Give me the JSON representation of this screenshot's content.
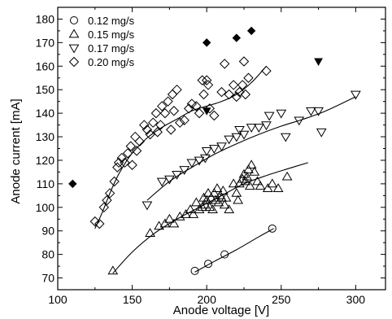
{
  "chart_data": {
    "type": "scatter",
    "xlabel": "Anode voltage [V]",
    "ylabel": "Anode current [mA]",
    "xlim": [
      100,
      320
    ],
    "ylim": [
      65,
      185
    ],
    "xticks": [
      100,
      150,
      200,
      250,
      300
    ],
    "yticks": [
      70,
      80,
      90,
      100,
      110,
      120,
      130,
      140,
      150,
      160,
      170,
      180
    ],
    "grid": false,
    "legend_position": "top-left",
    "series": [
      {
        "name": "0.12 mg/s",
        "marker": "circle",
        "points": [
          [
            192,
            73
          ],
          [
            201,
            76
          ],
          [
            212,
            80
          ],
          [
            244,
            91
          ]
        ],
        "fit": [
          [
            192,
            72.5
          ],
          [
            205,
            77
          ],
          [
            220,
            82
          ],
          [
            235,
            87.5
          ],
          [
            245,
            91
          ]
        ]
      },
      {
        "name": "0.15 mg/s",
        "marker": "triangle-up",
        "points": [
          [
            137,
            73
          ],
          [
            162,
            89
          ],
          [
            168,
            92
          ],
          [
            172,
            93
          ],
          [
            175,
            95
          ],
          [
            178,
            93
          ],
          [
            182,
            96
          ],
          [
            186,
            97
          ],
          [
            189,
            99
          ],
          [
            191,
            97
          ],
          [
            193,
            102
          ],
          [
            195,
            99
          ],
          [
            197,
            100
          ],
          [
            198,
            104
          ],
          [
            199,
            101
          ],
          [
            200,
            103
          ],
          [
            201,
            106
          ],
          [
            202,
            100
          ],
          [
            203,
            104
          ],
          [
            204,
            99
          ],
          [
            205,
            106
          ],
          [
            206,
            103
          ],
          [
            207,
            108
          ],
          [
            208,
            102
          ],
          [
            209,
            105
          ],
          [
            210,
            104
          ],
          [
            211,
            107
          ],
          [
            212,
            101
          ],
          [
            213,
            104
          ],
          [
            215,
            99
          ],
          [
            218,
            110
          ],
          [
            220,
            106
          ],
          [
            221,
            103
          ],
          [
            222,
            110
          ],
          [
            224,
            112
          ],
          [
            225,
            114
          ],
          [
            226,
            111
          ],
          [
            227,
            113
          ],
          [
            228,
            116
          ],
          [
            229,
            109
          ],
          [
            230,
            118
          ],
          [
            232,
            115
          ],
          [
            234,
            111
          ],
          [
            236,
            109
          ],
          [
            241,
            108
          ],
          [
            244,
            110
          ],
          [
            248,
            108
          ],
          [
            254,
            113
          ]
        ],
        "fit": [
          [
            137,
            72
          ],
          [
            150,
            81
          ],
          [
            165,
            89
          ],
          [
            180,
            95
          ],
          [
            195,
            100
          ],
          [
            210,
            105
          ],
          [
            225,
            110
          ],
          [
            240,
            113.5
          ],
          [
            255,
            116.5
          ],
          [
            268,
            119
          ]
        ]
      },
      {
        "name": "0.17 mg/s",
        "marker": "triangle-down",
        "points": [
          [
            160,
            101
          ],
          [
            170,
            111
          ],
          [
            175,
            112
          ],
          [
            180,
            114
          ],
          [
            185,
            116
          ],
          [
            190,
            119
          ],
          [
            195,
            120
          ],
          [
            199,
            121
          ],
          [
            200,
            124
          ],
          [
            205,
            125
          ],
          [
            210,
            126
          ],
          [
            215,
            129
          ],
          [
            220,
            130
          ],
          [
            222,
            133
          ],
          [
            225,
            131
          ],
          [
            230,
            134
          ],
          [
            235,
            134
          ],
          [
            240,
            135
          ],
          [
            242,
            139
          ],
          [
            250,
            140
          ],
          [
            253,
            130
          ],
          [
            262,
            137
          ],
          [
            270,
            141
          ],
          [
            275,
            141
          ],
          [
            277,
            132
          ],
          [
            300,
            148
          ]
        ],
        "fit": [
          [
            160,
            103
          ],
          [
            175,
            111
          ],
          [
            190,
            117
          ],
          [
            205,
            122.5
          ],
          [
            220,
            127
          ],
          [
            235,
            131
          ],
          [
            250,
            134.5
          ],
          [
            265,
            137.5
          ],
          [
            280,
            141
          ],
          [
            300,
            147
          ]
        ]
      },
      {
        "name": "0.20 mg/s",
        "marker": "diamond",
        "points": [
          [
            125,
            94
          ],
          [
            128,
            93
          ],
          [
            131,
            100
          ],
          [
            133,
            103
          ],
          [
            135,
            106
          ],
          [
            138,
            111
          ],
          [
            140,
            117
          ],
          [
            141,
            119
          ],
          [
            143,
            121
          ],
          [
            145,
            119
          ],
          [
            147,
            123
          ],
          [
            149,
            126
          ],
          [
            150,
            118
          ],
          [
            152,
            130
          ],
          [
            153,
            124
          ],
          [
            155,
            128
          ],
          [
            158,
            135
          ],
          [
            160,
            133
          ],
          [
            162,
            131
          ],
          [
            164,
            136
          ],
          [
            166,
            140
          ],
          [
            167,
            132
          ],
          [
            169,
            135
          ],
          [
            170,
            143
          ],
          [
            172,
            140
          ],
          [
            174,
            145
          ],
          [
            176,
            133
          ],
          [
            177,
            148
          ],
          [
            178,
            141
          ],
          [
            180,
            150
          ],
          [
            182,
            136
          ],
          [
            185,
            137
          ],
          [
            188,
            142
          ],
          [
            190,
            144
          ],
          [
            193,
            143
          ],
          [
            195,
            140
          ],
          [
            197,
            154
          ],
          [
            198,
            148
          ],
          [
            200,
            154
          ],
          [
            201,
            152
          ],
          [
            202,
            142
          ],
          [
            205,
            139
          ],
          [
            210,
            149
          ],
          [
            212,
            161
          ],
          [
            215,
            148
          ],
          [
            218,
            152
          ],
          [
            220,
            147
          ],
          [
            222,
            149
          ],
          [
            224,
            152
          ],
          [
            225,
            162
          ],
          [
            226,
            148
          ],
          [
            228,
            155
          ],
          [
            240,
            158
          ]
        ],
        "fit": [
          [
            125,
            91
          ],
          [
            130,
            98
          ],
          [
            135,
            106
          ],
          [
            140,
            113
          ],
          [
            145,
            118.5
          ],
          [
            150,
            123
          ],
          [
            160,
            129.5
          ],
          [
            170,
            134
          ],
          [
            180,
            137.5
          ],
          [
            190,
            141
          ],
          [
            200,
            143
          ],
          [
            210,
            145
          ],
          [
            220,
            148
          ],
          [
            230,
            153
          ],
          [
            240,
            160
          ]
        ]
      },
      {
        "name": "",
        "marker": "diamond-filled",
        "points": [
          [
            110,
            110
          ],
          [
            200,
            170
          ],
          [
            220,
            172
          ],
          [
            230,
            175
          ]
        ]
      },
      {
        "name": "",
        "marker": "triangle-down-filled",
        "points": [
          [
            200,
            141
          ],
          [
            275,
            162
          ]
        ]
      }
    ]
  }
}
